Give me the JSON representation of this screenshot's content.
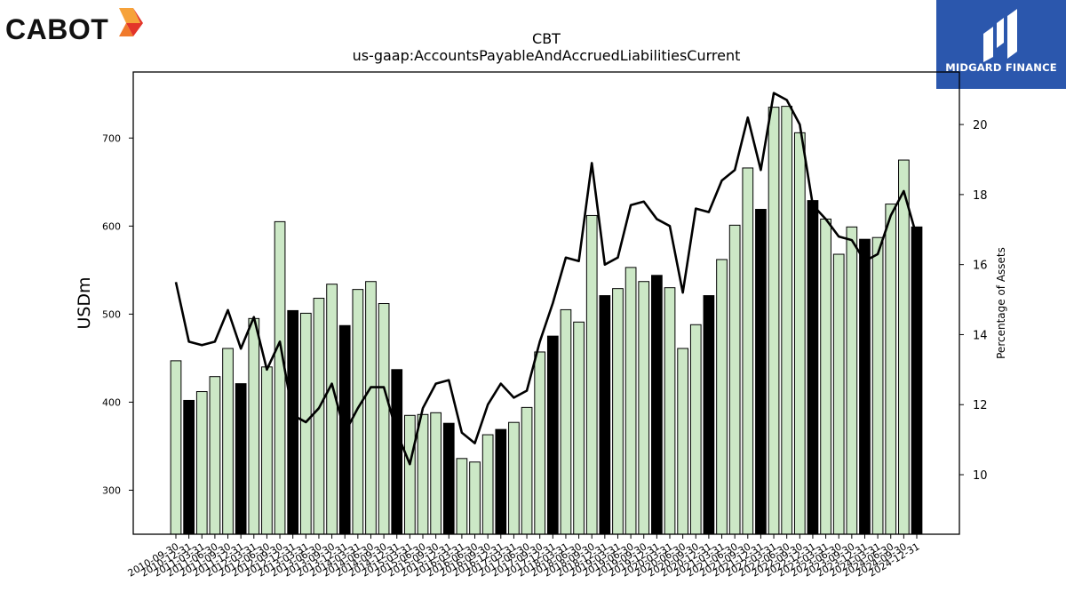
{
  "branding": {
    "company_logo_text": "CABOT",
    "partner_logo_text": "MIDGARD FINANCE",
    "colors": {
      "mark_orange": "#f6a23a",
      "mark_red": "#e3342a",
      "partner_blue": "#2b57ad"
    }
  },
  "chart_data": {
    "type": "bar",
    "title": "CBT",
    "subtitle": "us-gaap:AccountsPayableAndAccruedLiabilitiesCurrent",
    "ylabel": "USDm",
    "y2label": "Percentage of Assets",
    "ylim": [
      250,
      775
    ],
    "y2lim": [
      8.3,
      21.5
    ],
    "yticks": [
      300,
      400,
      500,
      600,
      700
    ],
    "y2ticks": [
      10,
      12,
      14,
      16,
      18,
      20
    ],
    "grid": false,
    "colors": {
      "quarter_bar": "#cce8c6",
      "fiscal_year_end_bar": "#000000",
      "line": "#000000",
      "bar_edge": "#000000"
    },
    "categories": [
      "2010-09-30",
      "2010-12-31",
      "2011-03-31",
      "2011-06-30",
      "2011-09-30",
      "2011-12-31",
      "2012-03-31",
      "2012-06-30",
      "2012-09-30",
      "2012-12-31",
      "2013-03-31",
      "2013-06-30",
      "2013-09-30",
      "2013-12-31",
      "2014-03-31",
      "2014-06-30",
      "2014-09-30",
      "2014-12-31",
      "2015-03-31",
      "2015-06-30",
      "2015-09-30",
      "2015-12-31",
      "2016-03-31",
      "2016-06-30",
      "2016-09-30",
      "2016-12-31",
      "2017-03-31",
      "2017-06-30",
      "2017-09-30",
      "2017-12-31",
      "2018-03-31",
      "2018-06-30",
      "2018-09-30",
      "2018-12-31",
      "2019-03-31",
      "2019-06-30",
      "2019-09-30",
      "2019-12-31",
      "2020-03-31",
      "2020-06-30",
      "2020-09-30",
      "2020-12-31",
      "2021-03-31",
      "2021-06-30",
      "2021-09-30",
      "2021-12-31",
      "2022-03-31",
      "2022-06-30",
      "2022-09-30",
      "2022-12-31",
      "2023-03-31",
      "2023-06-30",
      "2023-09-30",
      "2023-12-31",
      "2024-03-31",
      "2024-06-30",
      "2024-09-30",
      "2024-12-31"
    ],
    "series": [
      {
        "kind": "bar",
        "values": [
          447,
          402,
          412,
          429,
          461,
          421,
          495,
          440,
          605,
          504,
          501,
          518,
          534,
          487,
          528,
          537,
          512,
          437,
          385,
          386,
          388,
          376,
          336,
          332,
          363,
          369,
          377,
          394,
          457,
          475,
          505,
          491,
          612,
          521,
          529,
          553,
          537,
          544,
          530,
          461,
          488,
          521,
          562,
          601,
          666,
          619,
          735,
          736,
          706,
          629,
          608,
          568,
          599,
          585,
          587,
          625,
          675,
          599
        ],
        "fiscal_year_end": [
          false,
          true,
          false,
          false,
          false,
          true,
          false,
          false,
          false,
          true,
          false,
          false,
          false,
          true,
          false,
          false,
          false,
          true,
          false,
          false,
          false,
          true,
          false,
          false,
          false,
          true,
          false,
          false,
          false,
          true,
          false,
          false,
          false,
          true,
          false,
          false,
          false,
          true,
          false,
          false,
          false,
          true,
          false,
          false,
          false,
          true,
          false,
          false,
          false,
          true,
          false,
          false,
          false,
          true,
          false,
          false,
          false,
          true
        ]
      },
      {
        "kind": "line",
        "axis": "right",
        "values": [
          15.5,
          13.8,
          13.7,
          13.8,
          14.7,
          13.6,
          14.5,
          13.0,
          13.8,
          11.7,
          11.5,
          11.9,
          12.6,
          11.2,
          11.9,
          12.5,
          12.5,
          11.2,
          10.3,
          11.9,
          12.6,
          12.7,
          11.2,
          10.9,
          12.0,
          12.6,
          12.2,
          12.4,
          13.8,
          14.9,
          16.2,
          16.1,
          18.9,
          16.0,
          16.2,
          17.7,
          17.8,
          17.3,
          17.1,
          15.2,
          17.6,
          17.5,
          18.4,
          18.7,
          20.2,
          18.7,
          20.9,
          20.7,
          20.0,
          17.7,
          17.3,
          16.8,
          16.7,
          16.1,
          16.3,
          17.4,
          18.1,
          16.8
        ]
      }
    ]
  }
}
